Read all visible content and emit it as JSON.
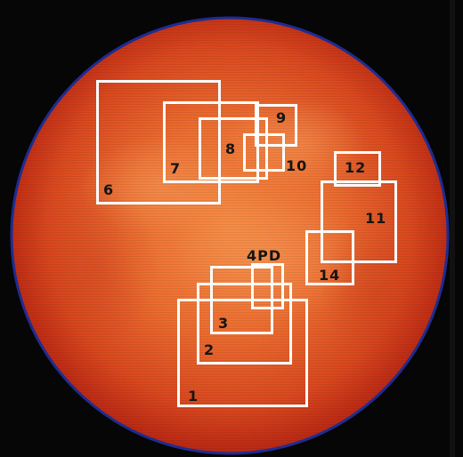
{
  "image": {
    "subject": "sun-disk",
    "colors": {
      "background": "#060606",
      "disk_center": "#f07a36",
      "disk_edge": "#bf2e16",
      "limb": "#1e2c92",
      "box_outline": "#ffffff",
      "label_text": "#151515"
    }
  },
  "regions": [
    {
      "id": "1",
      "label": "1"
    },
    {
      "id": "2",
      "label": "2"
    },
    {
      "id": "3",
      "label": "3"
    },
    {
      "id": "4",
      "label": "4PD"
    },
    {
      "id": "6",
      "label": "6"
    },
    {
      "id": "7",
      "label": "7"
    },
    {
      "id": "8",
      "label": "8"
    },
    {
      "id": "9",
      "label": "9"
    },
    {
      "id": "10",
      "label": "10"
    },
    {
      "id": "11",
      "label": "11"
    },
    {
      "id": "12",
      "label": "12"
    },
    {
      "id": "14",
      "label": "14"
    }
  ]
}
